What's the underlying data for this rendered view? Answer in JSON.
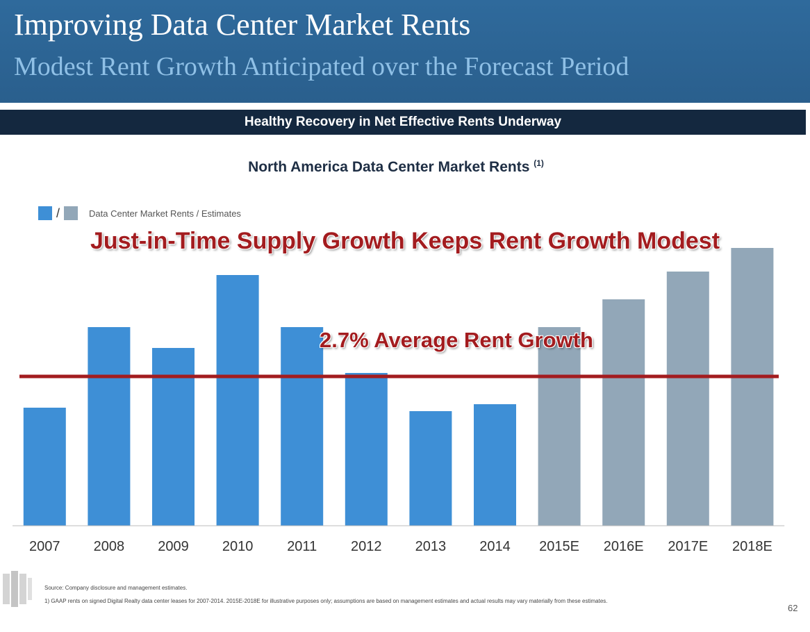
{
  "header": {
    "title": "Improving Data Center Market Rents",
    "subtitle": "Modest Rent Growth Anticipated over the Forecast Period"
  },
  "banner": "Healthy Recovery in Net Effective Rents Underway",
  "chart_title": "North America Data Center Market Rents",
  "chart_title_note": "(1)",
  "legend": {
    "slash": "/",
    "text": "Data Center Market Rents / Estimates"
  },
  "annotations": {
    "headline": "Just-in-Time Supply Growth Keeps Rent Growth Modest",
    "average": "2.7% Average Rent Growth"
  },
  "colors": {
    "actual": "#3e8fd6",
    "estimate": "#92a7b8",
    "average_line": "#a31c1f"
  },
  "chart_data": {
    "type": "bar",
    "categories": [
      "2007",
      "2008",
      "2009",
      "2010",
      "2011",
      "2012",
      "2013",
      "2014",
      "2015E",
      "2016E",
      "2017E",
      "2018E"
    ],
    "values": [
      170,
      286,
      256,
      361,
      286,
      220,
      165,
      175,
      286,
      326,
      366,
      400
    ],
    "estimate": [
      false,
      false,
      false,
      false,
      false,
      false,
      false,
      false,
      true,
      true,
      true,
      true
    ],
    "ylim": [
      0,
      400
    ],
    "average_value": 215,
    "xlabel": "",
    "ylabel": "",
    "legend_position": "top-left",
    "grid": false
  },
  "footer": {
    "source": "Source: Company disclosure and management estimates.",
    "footnote": "1)  GAAP rents on signed Digital Realty data center leases for 2007-2014. 2015E-2018E for illustrative purposes only; assumptions are based on management estimates and actual results may vary materially from these estimates.",
    "page_number": "62"
  }
}
